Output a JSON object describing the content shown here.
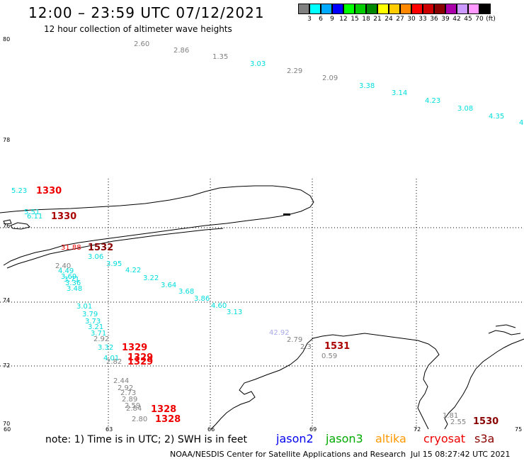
{
  "title": "12:00 – 23:59 UTC 07/12/2021",
  "subtitle": "12 hour collection of altimeter wave heights",
  "legend": {
    "unit": "(ft)",
    "items": [
      {
        "label": "3",
        "color": "#808080"
      },
      {
        "label": "6",
        "color": "#00ffff"
      },
      {
        "label": "9",
        "color": "#00aaff"
      },
      {
        "label": "12",
        "color": "#0000ff"
      },
      {
        "label": "15",
        "color": "#00ff00"
      },
      {
        "label": "18",
        "color": "#00cc00"
      },
      {
        "label": "21",
        "color": "#008800"
      },
      {
        "label": "24",
        "color": "#ffff00"
      },
      {
        "label": "27",
        "color": "#ffcc00"
      },
      {
        "label": "30",
        "color": "#ff8800"
      },
      {
        "label": "33",
        "color": "#ff0000"
      },
      {
        "label": "36",
        "color": "#cc0000"
      },
      {
        "label": "39",
        "color": "#880000"
      },
      {
        "label": "42",
        "color": "#aa00aa"
      },
      {
        "label": "45",
        "color": "#cc99ff"
      },
      {
        "label": "70",
        "color": "#ff99ff"
      },
      {
        "label": "",
        "color": "#000000"
      }
    ]
  },
  "axes": {
    "lat_labels": [
      "80",
      "78",
      "76",
      "74",
      "72",
      "70"
    ],
    "lon_labels": [
      "60",
      "63",
      "66",
      "69",
      "72",
      "75"
    ]
  },
  "observations": [
    {
      "text": "2.60",
      "color": "#808080"
    },
    {
      "text": "2.86",
      "color": "#808080"
    },
    {
      "text": "1.35",
      "color": "#808080"
    },
    {
      "text": "3.03",
      "color": "#00dddd"
    },
    {
      "text": "2.29",
      "color": "#808080"
    },
    {
      "text": "2.09",
      "color": "#808080"
    },
    {
      "text": "3.38",
      "color": "#00dddd"
    },
    {
      "text": "3.14",
      "color": "#00dddd"
    },
    {
      "text": "4.23",
      "color": "#00dddd"
    },
    {
      "text": "3.08",
      "color": "#00dddd"
    },
    {
      "text": "4.35",
      "color": "#00dddd"
    },
    {
      "text": "4",
      "color": "#00dddd"
    },
    {
      "text": "5.23",
      "color": "#00dddd"
    },
    {
      "text": "5.51",
      "color": "#00dddd"
    },
    {
      "text": "6.11",
      "color": "#00dddd"
    },
    {
      "text": "31.88",
      "color": "#ee0000"
    },
    {
      "text": "3.06",
      "color": "#00dddd"
    },
    {
      "text": "3.95",
      "color": "#00dddd"
    },
    {
      "text": "4.22",
      "color": "#00dddd"
    },
    {
      "text": "3.22",
      "color": "#00dddd"
    },
    {
      "text": "3.64",
      "color": "#00dddd"
    },
    {
      "text": "3.68",
      "color": "#00dddd"
    },
    {
      "text": "3.86",
      "color": "#00dddd"
    },
    {
      "text": "4.60",
      "color": "#00dddd"
    },
    {
      "text": "3.13",
      "color": "#00dddd"
    },
    {
      "text": "2.40",
      "color": "#808080"
    },
    {
      "text": "4.49",
      "color": "#00dddd"
    },
    {
      "text": "3.69",
      "color": "#00dddd"
    },
    {
      "text": "3.71",
      "color": "#00dddd"
    },
    {
      "text": "3.36",
      "color": "#00dddd"
    },
    {
      "text": "3.48",
      "color": "#00dddd"
    },
    {
      "text": "3.01",
      "color": "#00dddd"
    },
    {
      "text": "3.79",
      "color": "#00dddd"
    },
    {
      "text": "3.73",
      "color": "#00dddd"
    },
    {
      "text": "3.21",
      "color": "#00dddd"
    },
    {
      "text": "3.71",
      "color": "#00dddd"
    },
    {
      "text": "2.92",
      "color": "#808080"
    },
    {
      "text": "3.32",
      "color": "#00dddd"
    },
    {
      "text": "4.01",
      "color": "#00dddd"
    },
    {
      "text": "2.82",
      "color": "#808080"
    },
    {
      "text": "42.92",
      "color": "#aaaaee"
    },
    {
      "text": "2.79",
      "color": "#808080"
    },
    {
      "text": "2.3",
      "color": "#808080"
    },
    {
      "text": "0.59",
      "color": "#808080"
    },
    {
      "text": "2.44",
      "color": "#808080"
    },
    {
      "text": "2.92",
      "color": "#808080"
    },
    {
      "text": "2.73",
      "color": "#808080"
    },
    {
      "text": "2.89",
      "color": "#808080"
    },
    {
      "text": "2.59",
      "color": "#808080"
    },
    {
      "text": "2.84",
      "color": "#808080"
    },
    {
      "text": "2.80",
      "color": "#808080"
    },
    {
      "text": "1.81",
      "color": "#808080"
    },
    {
      "text": "2.55",
      "color": "#808080"
    }
  ],
  "pass_times": [
    {
      "text": "1330",
      "color": "#ee0000"
    },
    {
      "text": "1330",
      "color": "#aa0000"
    },
    {
      "text": "1532",
      "color": "#880000"
    },
    {
      "text": "1329",
      "color": "#ee0000"
    },
    {
      "text": "1329",
      "color": "#ee0000"
    },
    {
      "text": "1329",
      "color": "#ee0000"
    },
    {
      "text": "1531",
      "color": "#aa0000"
    },
    {
      "text": "1328",
      "color": "#ee0000"
    },
    {
      "text": "1328",
      "color": "#ee0000"
    },
    {
      "text": "1530",
      "color": "#880000"
    }
  ],
  "footer": {
    "note": "note: 1) Time is in UTC; 2) SWH is in feet",
    "satellites": [
      {
        "name": "jason2",
        "color": "#0000ee"
      },
      {
        "name": "jason3",
        "color": "#00aa00"
      },
      {
        "name": "altika",
        "color": "#ff9900"
      },
      {
        "name": "cryosat",
        "color": "#ee0000"
      },
      {
        "name": "s3a",
        "color": "#880000"
      }
    ],
    "credits": "NOAA/NESDIS Center for Satellite Applications and Research",
    "timestamp": "Jul 15 08:27:42 UTC 2021"
  }
}
